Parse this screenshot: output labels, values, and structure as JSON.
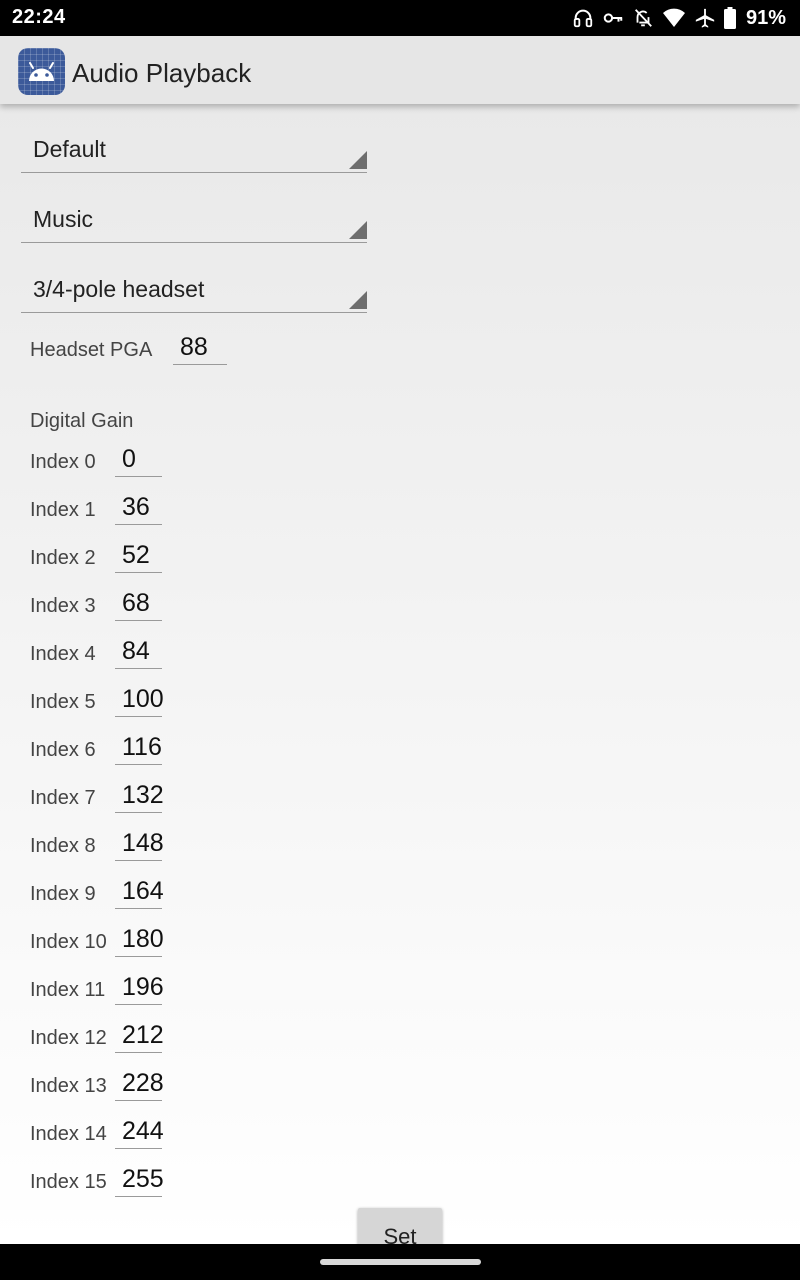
{
  "status_bar": {
    "time": "22:24",
    "battery_text": "91%",
    "icons": [
      "headphones-icon",
      "vpn-key-icon",
      "notifications-off-icon",
      "wifi-icon",
      "airplane-mode-icon",
      "battery-icon"
    ]
  },
  "app_bar": {
    "title": "Audio Playback",
    "icon": "android-app-icon",
    "color": "#e6e6e6"
  },
  "spinners": [
    {
      "value": "Default"
    },
    {
      "value": "Music"
    },
    {
      "value": "3/4-pole headset"
    }
  ],
  "headset_pga": {
    "label": "Headset PGA",
    "value": "88"
  },
  "digital_gain": {
    "heading": "Digital Gain",
    "indices": [
      {
        "label": "Index 0",
        "value": "0"
      },
      {
        "label": "Index 1",
        "value": "36"
      },
      {
        "label": "Index 2",
        "value": "52"
      },
      {
        "label": "Index 3",
        "value": "68"
      },
      {
        "label": "Index 4",
        "value": "84"
      },
      {
        "label": "Index 5",
        "value": "100"
      },
      {
        "label": "Index 6",
        "value": "116"
      },
      {
        "label": "Index 7",
        "value": "132"
      },
      {
        "label": "Index 8",
        "value": "148"
      },
      {
        "label": "Index 9",
        "value": "164"
      },
      {
        "label": "Index 10",
        "value": "180"
      },
      {
        "label": "Index 11",
        "value": "196"
      },
      {
        "label": "Index 12",
        "value": "212"
      },
      {
        "label": "Index 13",
        "value": "228"
      },
      {
        "label": "Index 14",
        "value": "244"
      },
      {
        "label": "Index 15",
        "value": "255"
      }
    ]
  },
  "set_button": {
    "label": "Set"
  }
}
